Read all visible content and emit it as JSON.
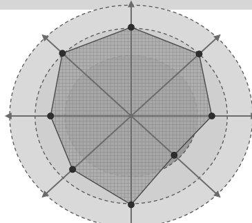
{
  "chart_data": {
    "type": "radar",
    "axes_count": 8,
    "values": [
      0.88,
      0.87,
      0.73,
      0.55,
      0.88,
      0.75,
      0.73,
      0.88
    ],
    "rings": [
      0.6,
      0.87,
      1.1
    ],
    "grid": true,
    "colors": {
      "outer_ring_fill": "#d9d9d9",
      "mid_ring_fill": "#cfcfcf",
      "inner_ring_fill": "#9a9a9a",
      "polygon_fill": "#a9a9a9",
      "polygon_edge": "#4a4a4a",
      "axis": "#6b6b6b",
      "marker": "#2f2f2f",
      "ring_stroke": "#555555"
    }
  }
}
